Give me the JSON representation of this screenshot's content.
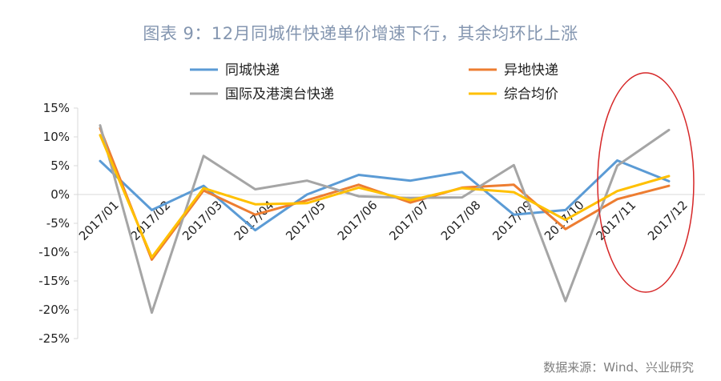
{
  "title": "图表 9：12月同城件快递单价增速下行，其余均环比上涨",
  "source": "数据来源：Wind、兴业研究",
  "chart_data": {
    "type": "line",
    "categories": [
      "2017/01",
      "2017/02",
      "2017/03",
      "2017/04",
      "2017/05",
      "2017/06",
      "2017/07",
      "2017/08",
      "2017/09",
      "2017/10",
      "2017/11",
      "2017/12"
    ],
    "ylim": [
      -25,
      15
    ],
    "yticks": [
      15,
      10,
      5,
      0,
      -5,
      -10,
      -15,
      -20,
      -25
    ],
    "ytick_labels": [
      "15%",
      "10%",
      "5%",
      "0%",
      "-5%",
      "-10%",
      "-15%",
      "-20%",
      "-25%"
    ],
    "legend_position": "top",
    "grid": false,
    "series": [
      {
        "name": "同城快递",
        "color": "#5b9bd5",
        "values": [
          5.8,
          -2.7,
          1.5,
          -6.2,
          0.0,
          3.4,
          2.4,
          3.9,
          -3.5,
          -2.7,
          5.9,
          2.3
        ]
      },
      {
        "name": "异地快递",
        "color": "#ed7d31",
        "values": [
          11.5,
          -11.3,
          0.7,
          -3.5,
          -1.0,
          1.7,
          -1.4,
          1.2,
          1.7,
          -6.0,
          -0.8,
          1.5
        ]
      },
      {
        "name": "国际及港澳台快递",
        "color": "#a5a5a5",
        "values": [
          12.0,
          -20.5,
          6.7,
          0.9,
          2.4,
          -0.3,
          -0.6,
          -0.5,
          5.1,
          -18.5,
          5.0,
          11.2
        ]
      },
      {
        "name": "综合均价",
        "color": "#ffc000",
        "values": [
          10.3,
          -10.9,
          1.1,
          -1.7,
          -1.5,
          1.2,
          -1.0,
          1.1,
          0.4,
          -4.4,
          0.6,
          3.2
        ]
      }
    ],
    "annotation": {
      "shape": "ellipse",
      "color": "#d62728"
    }
  }
}
